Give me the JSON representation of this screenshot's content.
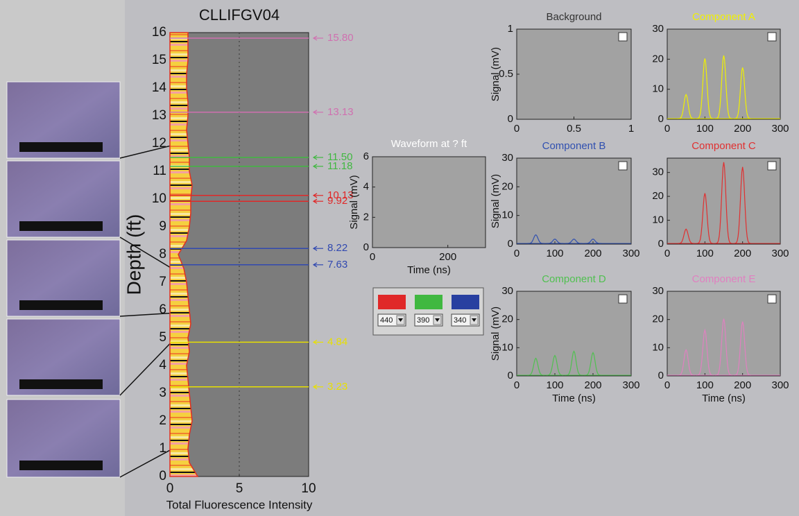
{
  "depth_log": {
    "title": "CLLIFGV04",
    "y_label": "Depth (ft)",
    "x_label": "Total Fluorescence Intensity",
    "xlim": [
      0,
      10
    ],
    "xticks": [
      0,
      5,
      10
    ],
    "ylim": [
      0,
      16
    ],
    "yticks": [
      0,
      1,
      2,
      3,
      4,
      5,
      6,
      7,
      8,
      9,
      10,
      11,
      12,
      13,
      14,
      15,
      16
    ],
    "profile": {
      "depths": [
        0,
        0.5,
        1,
        1.5,
        2,
        2.5,
        3,
        3.5,
        4,
        4.5,
        5,
        5.5,
        6,
        6.5,
        7,
        7.5,
        8,
        8.5,
        9,
        9.5,
        10,
        10.5,
        11,
        11.5,
        12,
        12.5,
        13,
        13.5,
        14,
        14.5,
        15,
        15.5,
        16
      ],
      "values": [
        2.0,
        1.4,
        1.3,
        1.4,
        1.6,
        1.5,
        1.4,
        1.3,
        1.2,
        1.4,
        1.3,
        1.5,
        1.4,
        1.3,
        1.2,
        1.0,
        0.6,
        1.2,
        1.4,
        1.5,
        1.5,
        1.6,
        1.4,
        1.4,
        1.3,
        1.2,
        1.3,
        1.3,
        1.2,
        1.2,
        1.3,
        1.3,
        1.3
      ]
    },
    "markers": [
      {
        "depth": 3.23,
        "label": "3.23",
        "color": "#e8e000"
      },
      {
        "depth": 4.84,
        "label": "4.84",
        "color": "#e8e000"
      },
      {
        "depth": 7.63,
        "label": "7.63",
        "color": "#3048b0"
      },
      {
        "depth": 8.22,
        "label": "8.22",
        "color": "#3048b0"
      },
      {
        "depth": 9.92,
        "label": "9.92",
        "color": "#e02828"
      },
      {
        "depth": 10.13,
        "label": "10.13",
        "color": "#e02828"
      },
      {
        "depth": 11.18,
        "label": "11.18",
        "color": "#40b840"
      },
      {
        "depth": 11.5,
        "label": "11.50",
        "color": "#40b840"
      },
      {
        "depth": 13.13,
        "label": "13.13",
        "color": "#d070b0"
      },
      {
        "depth": 15.8,
        "label": "15.80",
        "color": "#d070b0"
      }
    ]
  },
  "waveform": {
    "title": "Waveform at ? ft",
    "title_color": "#ffffff",
    "x_label": "Time (ns)",
    "y_label": "Signal (mV)",
    "xlim": [
      0,
      300
    ],
    "xticks": [
      0,
      200
    ],
    "ylim": [
      0,
      6
    ],
    "yticks": [
      0,
      2,
      4,
      6
    ]
  },
  "filters": [
    {
      "color": "#e02828",
      "label": "440"
    },
    {
      "color": "#40b840",
      "label": "390"
    },
    {
      "color": "#2840a0",
      "label": "340"
    }
  ],
  "panels": [
    {
      "title": "Background",
      "title_color": "#333333",
      "y_label": "Signal (mV)",
      "xlim": [
        0,
        1
      ],
      "xticks": [
        0,
        0.5,
        1
      ],
      "ylim": [
        0,
        1
      ],
      "yticks": [
        0,
        0.5,
        1
      ]
    },
    {
      "title": "Component A",
      "title_color": "#f0f000",
      "color": "#f0f000",
      "xlim": [
        0,
        300
      ],
      "xticks": [
        0,
        100,
        200,
        300
      ],
      "ylim": [
        0,
        30
      ],
      "yticks": [
        0,
        10,
        20,
        30
      ],
      "peaks": {
        "x": [
          50,
          100,
          150,
          200
        ],
        "y": [
          8,
          20,
          21,
          17
        ]
      }
    },
    {
      "title": "Component B",
      "title_color": "#3050b0",
      "color": "#3050b0",
      "y_label": "Signal (mV)",
      "xlim": [
        0,
        300
      ],
      "xticks": [
        0,
        100,
        200,
        300
      ],
      "ylim": [
        0,
        30
      ],
      "yticks": [
        0,
        10,
        20,
        30
      ],
      "peaks": {
        "x": [
          50,
          100,
          150,
          200
        ],
        "y": [
          3,
          1.5,
          1.5,
          1.5
        ]
      }
    },
    {
      "title": "Component C",
      "title_color": "#e03030",
      "color": "#e03030",
      "xlim": [
        0,
        300
      ],
      "xticks": [
        0,
        100,
        200,
        300
      ],
      "ylim": [
        0,
        36
      ],
      "yticks": [
        0,
        10,
        20,
        30
      ],
      "peaks": {
        "x": [
          50,
          100,
          150,
          200
        ],
        "y": [
          6,
          21,
          34,
          32
        ]
      }
    },
    {
      "title": "Component D",
      "title_color": "#50c050",
      "color": "#50c050",
      "y_label": "Signal (mV)",
      "x_label": "Time (ns)",
      "xlim": [
        0,
        300
      ],
      "xticks": [
        0,
        100,
        200,
        300
      ],
      "ylim": [
        0,
        30
      ],
      "yticks": [
        0,
        10,
        20,
        30
      ],
      "peaks": {
        "x": [
          50,
          100,
          150,
          200
        ],
        "y": [
          6,
          7,
          8.5,
          8
        ]
      }
    },
    {
      "title": "Component E",
      "title_color": "#e080c0",
      "color": "#e080c0",
      "x_label": "Time (ns)",
      "xlim": [
        0,
        300
      ],
      "xticks": [
        0,
        100,
        200,
        300
      ],
      "ylim": [
        0,
        30
      ],
      "yticks": [
        0,
        10,
        20,
        30
      ],
      "peaks": {
        "x": [
          50,
          100,
          150,
          200
        ],
        "y": [
          9,
          16,
          20,
          19
        ]
      }
    }
  ]
}
